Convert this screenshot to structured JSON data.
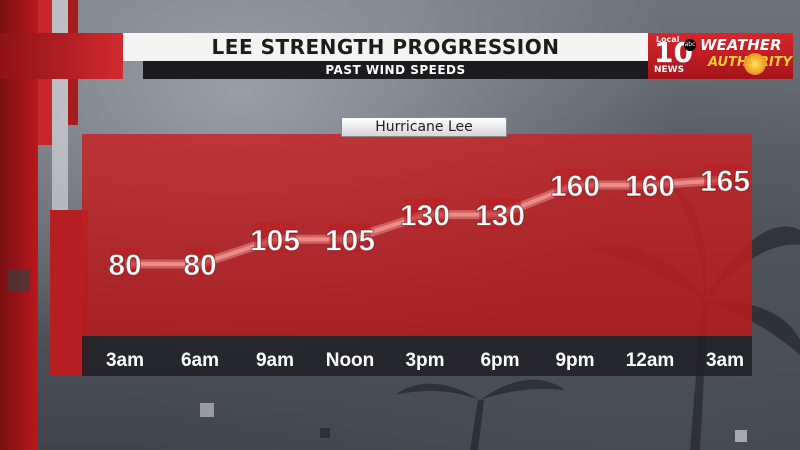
{
  "header": {
    "title": "LEE STRENGTH PROGRESSION",
    "subtitle": "PAST WIND SPEEDS"
  },
  "logo": {
    "local": "Local",
    "number": "10",
    "network": "abc",
    "news": "NEWS",
    "weather": "WEATHER",
    "authority": "AUTHORITY"
  },
  "colors": {
    "panel_red": "#c42628",
    "line": "#f08a86",
    "label": "#ffffff",
    "header_bg": "#f4f4f4",
    "subheader_bg": "#1c1c1e"
  },
  "chart_data": {
    "type": "line",
    "series": [
      {
        "name": "Hurricane Lee",
        "values": [
          80,
          80,
          105,
          105,
          130,
          130,
          160,
          160,
          165
        ]
      }
    ],
    "categories": [
      "3am",
      "6am",
      "9am",
      "Noon",
      "3pm",
      "6pm",
      "9pm",
      "12am",
      "3am"
    ],
    "ylim": [
      60,
      180
    ],
    "grid": false,
    "legend": "top-center"
  }
}
